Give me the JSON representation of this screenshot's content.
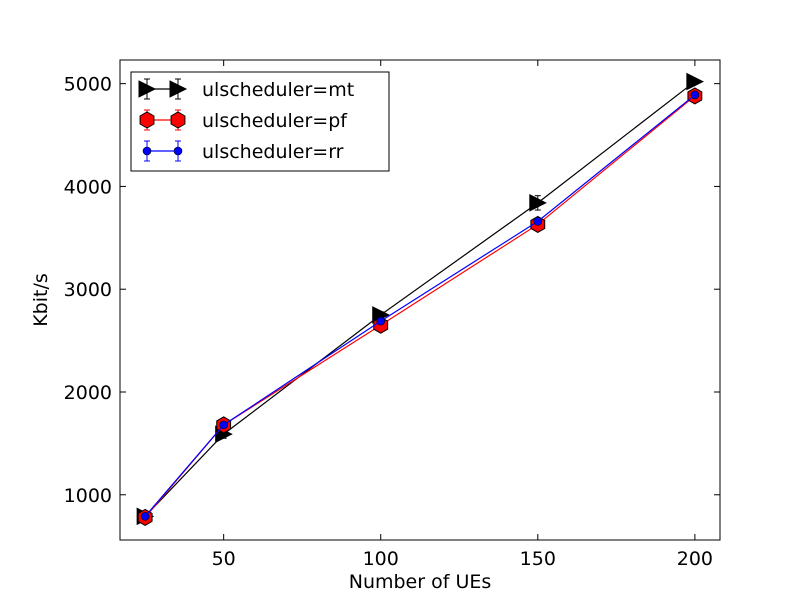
{
  "chart_data": {
    "type": "line",
    "xlabel": "Number of UEs",
    "ylabel": "Kbit/s",
    "x": [
      25,
      50,
      100,
      150,
      200
    ],
    "xlim": [
      17,
      208
    ],
    "ylim": [
      560,
      5230
    ],
    "xticks": [
      50,
      100,
      150,
      200
    ],
    "yticks": [
      1000,
      2000,
      3000,
      4000,
      5000
    ],
    "grid": false,
    "legend_position": "top-left",
    "series": [
      {
        "name": "ulscheduler=mt",
        "color": "#000000",
        "marker": "triangle-right",
        "values": [
          790,
          1590,
          2750,
          3840,
          5020
        ],
        "errors": [
          20,
          40,
          30,
          70,
          20
        ]
      },
      {
        "name": "ulscheduler=pf",
        "color": "#ff0000",
        "marker": "hexagon",
        "values": [
          780,
          1680,
          2650,
          3630,
          4880
        ],
        "errors": [
          20,
          30,
          30,
          30,
          20
        ]
      },
      {
        "name": "ulscheduler=rr",
        "color": "#0000ff",
        "marker": "circle",
        "values": [
          790,
          1680,
          2690,
          3660,
          4890
        ],
        "errors": [
          15,
          25,
          25,
          25,
          15
        ]
      }
    ]
  }
}
